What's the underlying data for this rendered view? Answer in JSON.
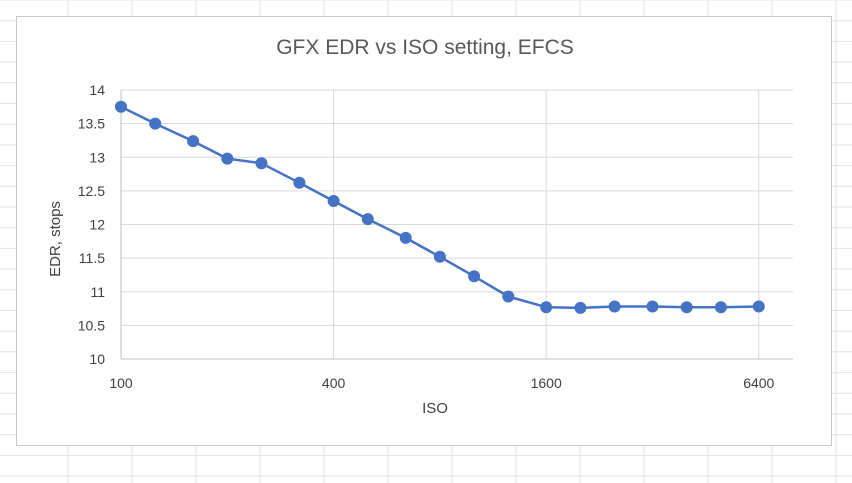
{
  "chart_data": {
    "type": "line",
    "title": "GFX EDR vs ISO setting, EFCS",
    "xlabel": "ISO",
    "ylabel": "EDR, stops",
    "x_scale": "log2",
    "xlim": [
      100,
      8000
    ],
    "ylim": [
      10,
      14
    ],
    "x_ticks": [
      100,
      400,
      1600,
      6400
    ],
    "y_ticks": [
      10,
      10.5,
      11,
      11.5,
      12,
      12.5,
      13,
      13.5,
      14
    ],
    "grid": true,
    "legend": "none",
    "series": [
      {
        "color": "#4472c4",
        "x": [
          100,
          125,
          160,
          200,
          250,
          320,
          400,
          500,
          640,
          800,
          1000,
          1250,
          1600,
          2000,
          2500,
          3200,
          4000,
          5000,
          6400
        ],
        "y": [
          13.75,
          13.5,
          13.24,
          12.98,
          12.91,
          12.62,
          12.35,
          12.08,
          11.8,
          11.52,
          11.23,
          10.93,
          10.77,
          10.76,
          10.78,
          10.78,
          10.77,
          10.77,
          10.78
        ]
      }
    ]
  }
}
